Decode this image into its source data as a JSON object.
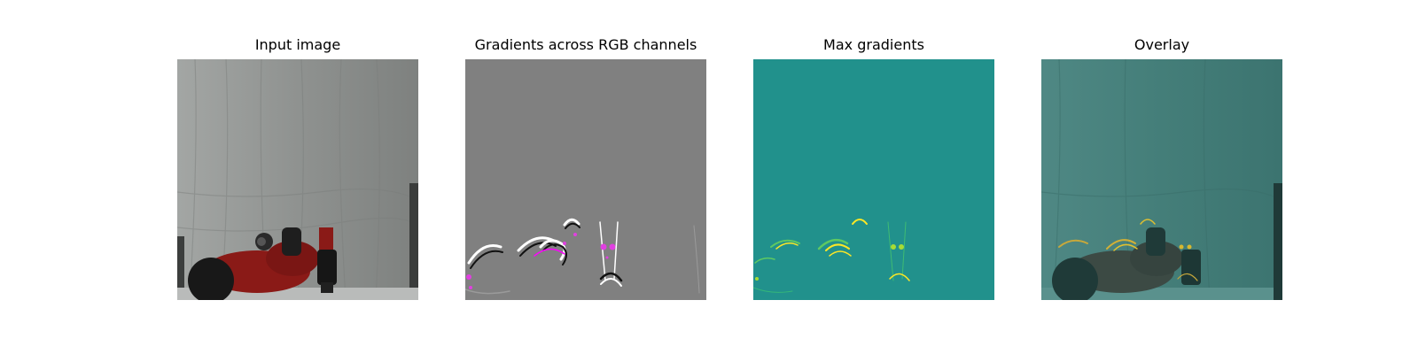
{
  "figure": {
    "panels": [
      {
        "id": "input",
        "title": "Input image"
      },
      {
        "id": "gradients-rgb",
        "title": "Gradients across RGB channels"
      },
      {
        "id": "max-gradients",
        "title": "Max gradients"
      },
      {
        "id": "overlay",
        "title": "Overlay"
      }
    ]
  },
  "colors": {
    "background": "#ffffff",
    "curtain": "#8e918f",
    "robot_red": "#8a1a17",
    "gradient_gray": "#808080",
    "viridis_teal": "#21918c",
    "viridis_yellow": "#fde725",
    "viridis_green": "#5ec962",
    "magenta": "#e040e0",
    "overlay_teal": "#3f7a76"
  }
}
